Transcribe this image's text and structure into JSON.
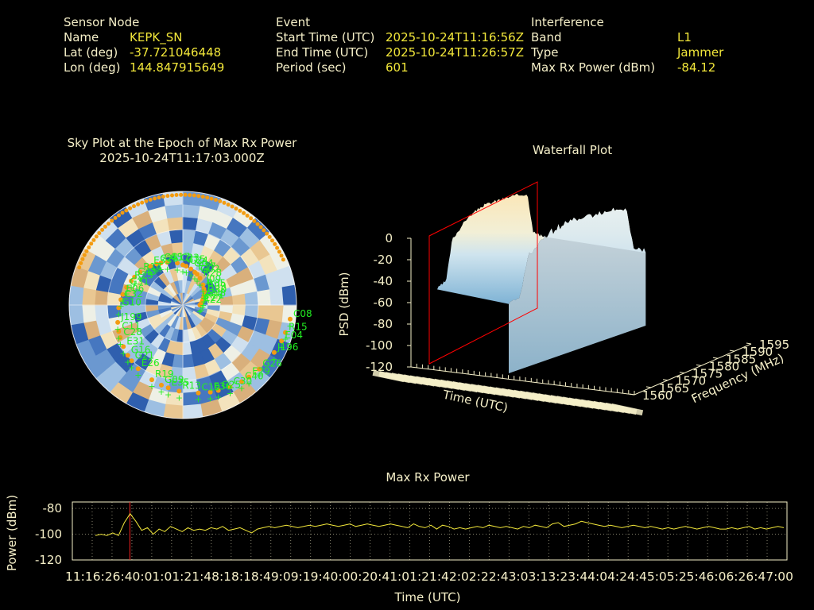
{
  "header": {
    "sensor": {
      "heading": "Sensor Node",
      "rows": [
        {
          "label": "Name",
          "value": "KEPK_SN"
        },
        {
          "label": "Lat (deg)",
          "value": "-37.721046448"
        },
        {
          "label": "Lon (deg)",
          "value": "144.847915649"
        }
      ]
    },
    "event": {
      "heading": "Event",
      "rows": [
        {
          "label": "Start Time (UTC)",
          "value": "2025-10-24T11:16:56Z"
        },
        {
          "label": "End Time (UTC)",
          "value": "2025-10-24T11:26:57Z"
        },
        {
          "label": "Period (sec)",
          "value": "601"
        }
      ]
    },
    "interference": {
      "heading": "Interference",
      "rows": [
        {
          "label": "Band",
          "value": "L1"
        },
        {
          "label": "Type",
          "value": "Jammer"
        },
        {
          "label": "Max Rx Power (dBm)",
          "value": "-84.12"
        }
      ]
    }
  },
  "skyplot": {
    "title_line1": "Sky Plot at the Epoch of Max Rx Power",
    "title_line2": "2025-10-24T11:17:03.000Z",
    "satellite_labels": [
      "R22",
      "G16",
      "C24",
      "C40",
      "E06",
      "R09",
      "G09",
      "C45",
      "E04",
      "C11",
      "G02",
      "E36",
      "C43",
      "R21",
      "E26",
      "C23",
      "G26",
      "G10",
      "J09",
      "R13",
      "E33",
      "C08",
      "E31",
      "G04",
      "C30",
      "G31",
      "G30",
      "R19",
      "G17",
      "J196",
      "J199",
      "R28",
      "C19",
      "R14",
      "E27",
      "G21",
      "G15",
      "E29",
      "C32",
      "R05",
      "E35",
      "C25",
      "R15",
      "C28",
      "E17",
      "G25",
      "R23",
      "G08"
    ]
  },
  "chart_data": [
    {
      "type": "area",
      "title": "Waterfall Plot",
      "xlabel": "Time (UTC)",
      "ylabel": "Frequency (MHz)",
      "zlabel": "PSD (dBm)",
      "ylim": [
        1560,
        1595
      ],
      "zlim": [
        -120,
        0
      ],
      "y_ticks": [
        1560,
        1565,
        1570,
        1575,
        1580,
        1585,
        1590,
        1595
      ],
      "z_ticks": [
        0,
        -20,
        -40,
        -60,
        -80,
        -100,
        -120
      ],
      "psd_profile": {
        "frequency_mhz": [
          1560,
          1563,
          1565,
          1570,
          1575,
          1580,
          1585,
          1590,
          1592,
          1595
        ],
        "psd_dbm": [
          -62,
          -58,
          -22,
          -8,
          -3,
          -4,
          -6,
          -10,
          -48,
          -56
        ]
      }
    },
    {
      "type": "line",
      "title": "Max Rx Power",
      "xlabel": "Time (UTC)",
      "ylabel": "Power (dBm)",
      "ylim": [
        -120,
        -75
      ],
      "y_ticks": [
        -80,
        -100,
        -120
      ],
      "x_tick_text": "11:16:26:40:01:01:21:48:18:18:49:09:19:40:00:20:41:01:21:42:02:22:43:03:13:23:44:04:24:45:05:25:46:06:26:47:00",
      "grid": true,
      "marker_time_sec": 7,
      "series": [
        {
          "values": [
            -101,
            -100,
            -101,
            -99,
            -101,
            -91,
            -84.12,
            -90,
            -97,
            -95,
            -100,
            -96,
            -98,
            -94,
            -96,
            -98,
            -95,
            -97,
            -96,
            -97,
            -95,
            -96,
            -94,
            -97,
            -96,
            -95,
            -97,
            -99,
            -96,
            -95,
            -94,
            -95,
            -94,
            -93,
            -94,
            -95,
            -94,
            -93,
            -94,
            -93,
            -92,
            -93,
            -94,
            -93,
            -92,
            -94,
            -93,
            -92,
            -93,
            -94,
            -93,
            -92,
            -93,
            -94,
            -95,
            -92,
            -94,
            -95,
            -93,
            -96,
            -93,
            -94,
            -96,
            -95,
            -96,
            -95,
            -94,
            -95,
            -93,
            -94,
            -95,
            -94,
            -95,
            -96,
            -94,
            -95,
            -93,
            -94,
            -95,
            -92,
            -91,
            -94,
            -93,
            -92,
            -90,
            -91,
            -92,
            -93,
            -94,
            -93,
            -94,
            -95,
            -94,
            -93,
            -94,
            -95,
            -94,
            -95,
            -96,
            -95,
            -96,
            -95,
            -94,
            -95,
            -96,
            -95,
            -94,
            -95,
            -96,
            -96,
            -95,
            -96,
            -95,
            -94,
            -96,
            -95,
            -96,
            -95,
            -94,
            -95
          ]
        }
      ]
    }
  ]
}
